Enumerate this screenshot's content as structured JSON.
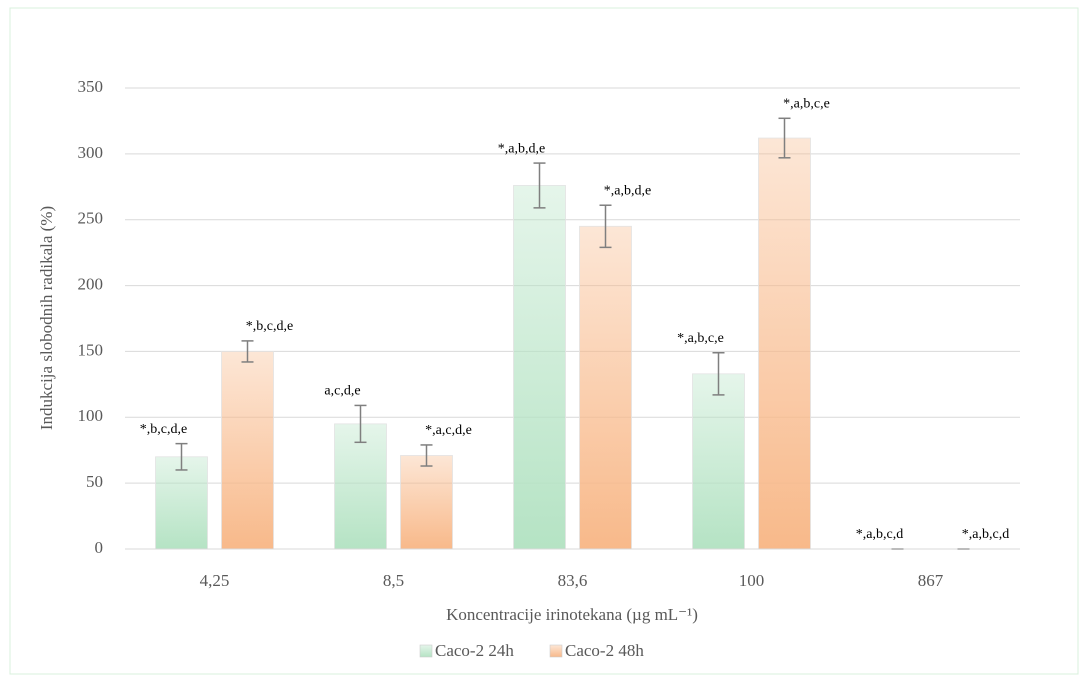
{
  "chart_data": {
    "type": "bar",
    "xlabel": "Koncentracije irinotekana (µg mL⁻¹)",
    "ylabel": "Indukcija slobodnih radikala (%)",
    "categories": [
      "4,25",
      "8,5",
      "83,6",
      "100",
      "867"
    ],
    "series": [
      {
        "name": "Caco-2 24h",
        "color": "#b5e3c4",
        "values": [
          70,
          95,
          276,
          133,
          0
        ],
        "errors": [
          10,
          14,
          17,
          16,
          0
        ],
        "annotations": [
          "*,b,c,d,e",
          "a,c,d,e",
          "*,a,b,d,e",
          "*,a,b,c,e",
          "*,a,b,c,d"
        ]
      },
      {
        "name": "Caco-2 48h",
        "color": "#f8b98a",
        "values": [
          150,
          71,
          245,
          312,
          0
        ],
        "errors": [
          8,
          8,
          16,
          15,
          0
        ],
        "annotations": [
          "*,b,c,d,e",
          "*,a,c,d,e",
          "*,a,b,d,e",
          "*,a,b,c,e",
          "*,a,b,c,d"
        ]
      }
    ],
    "ylim": [
      0,
      350
    ],
    "yticks": [
      0,
      50,
      100,
      150,
      200,
      250,
      300,
      350
    ],
    "grid": true,
    "legend": "bottom"
  }
}
